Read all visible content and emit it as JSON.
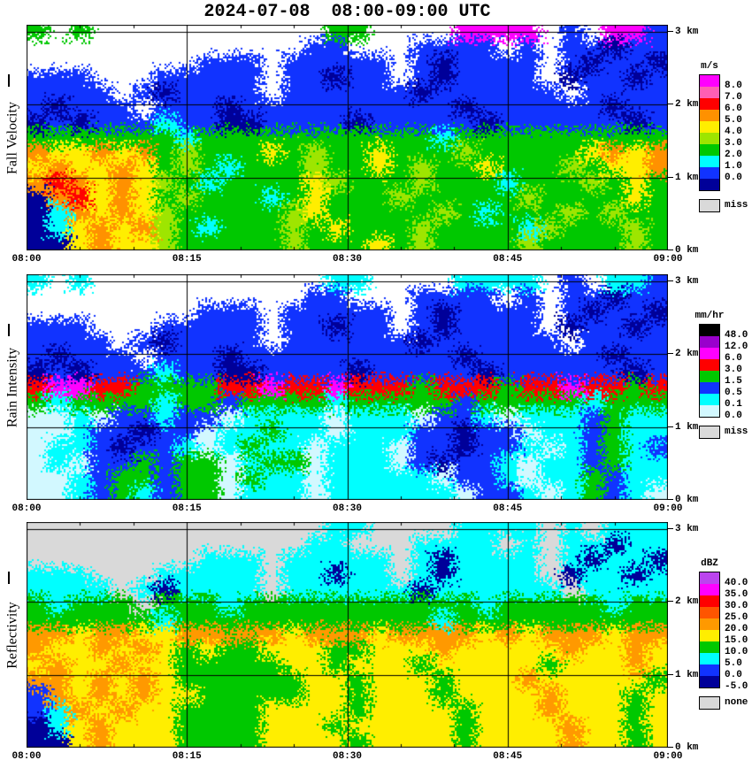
{
  "title": "2024-07-08  08:00-09:00 UTC",
  "chart_data": [
    {
      "type": "heatmap",
      "name": "fall-velocity",
      "ylabel": "Fall Velocity",
      "unit": "m/s",
      "time_start_utc": "08:00",
      "time_end_utc": "09:00",
      "x_tick_labels": [
        "08:00",
        "08:15",
        "08:30",
        "08:45",
        "09:00"
      ],
      "x_tick_minutes": [
        0,
        15,
        30,
        45,
        60
      ],
      "x_gridline_minutes": [
        15,
        30,
        45
      ],
      "height_km_range": [
        0,
        3.1
      ],
      "y_gridlines_km": [
        3,
        2,
        1
      ],
      "y_tick_km": [
        3,
        2,
        1,
        0
      ],
      "y_tick_labels": [
        "3 km",
        "2 km",
        "1 km",
        "0 km"
      ],
      "legend": {
        "title": "m/s",
        "entries": [
          {
            "color": "#ff00ff",
            "label": "8.0"
          },
          {
            "color": "#ff5fb4",
            "label": "7.0"
          },
          {
            "color": "#ff0000",
            "label": "6.0"
          },
          {
            "color": "#ff9100",
            "label": "5.0"
          },
          {
            "color": "#ffee00",
            "label": "4.0"
          },
          {
            "color": "#9ee500",
            "label": "3.0"
          },
          {
            "color": "#00c800",
            "label": "2.0"
          },
          {
            "color": "#00ffff",
            "label": "1.0"
          },
          {
            "color": "#1133ff",
            "label": "0.0"
          },
          {
            "color": "#000099",
            "label": ""
          }
        ],
        "miss": {
          "color": "#d9d9d9",
          "label": "miss"
        }
      },
      "palette": {
        ".": "#ffffff",
        "m": "#ff00ff",
        "p": "#ff5fb4",
        "r": "#ff0000",
        "o": "#ff9100",
        "y": "#ffee00",
        "h": "#9ee500",
        "g": "#00c800",
        "c": "#00ffff",
        "b": "#1133ff",
        "d": "#000099",
        "x": "#d9d9d9"
      },
      "grid_cols_minutes_each": 2,
      "grid_rows_km_each": 0.207,
      "grid_rows_top_to_bottom": [
        "g.g...........gg....mmmm.b.mmb",
        ".............bb...bbbb.b.bbdbb",
        "........bbb.bbbbb.bdbbbb.bdbbd",
        "bbb...bbbbb.bbdbb.bdbbbb.dbbdb",
        "bbbb.bdbbbb.bbbbbbdbbbbbb.bbbb",
        "bdbbb.bbbdbbbbbbbbbbdbbbbbbdbb",
        "dbdbbbcbbddbbbbdbbbbbdbbbbbbdb",
        "gggggggcgggggggggggcgggggggggg",
        "oyyoyoghgggyghggyggghgggggyoyo",
        "yoyyoyghgcggghggyghggyggghgyyo",
        "oroyoyhgcggggyhggghgggcggghgyg",
        "doryoyghgggcgyggghggggghggggyg",
        "dcoyoyhggggghyggggghgcggghghgg",
        "dcyoyohgcggghgyggghggggchggghg",
        "ddyoyyhggggghgggyghgggghgggghg"
      ]
    },
    {
      "type": "heatmap",
      "name": "rain-intensity",
      "ylabel": "Rain Intensity",
      "unit": "mm/hr",
      "time_start_utc": "08:00",
      "time_end_utc": "09:00",
      "x_tick_labels": [
        "08:00",
        "08:15",
        "08:30",
        "08:45",
        "09:00"
      ],
      "x_tick_minutes": [
        0,
        15,
        30,
        45,
        60
      ],
      "x_gridline_minutes": [
        15,
        30,
        45
      ],
      "height_km_range": [
        0,
        3.1
      ],
      "y_gridlines_km": [
        3,
        2,
        1
      ],
      "y_tick_km": [
        3,
        2,
        1,
        0
      ],
      "y_tick_labels": [
        "3 km",
        "2 km",
        "1 km",
        "0 km"
      ],
      "legend": {
        "title": "mm/hr",
        "entries": [
          {
            "color": "#000000",
            "label": "48.0"
          },
          {
            "color": "#9900cc",
            "label": "12.0"
          },
          {
            "color": "#ff00ff",
            "label": "6.0"
          },
          {
            "color": "#ff0000",
            "label": "3.0"
          },
          {
            "color": "#00c800",
            "label": "1.5"
          },
          {
            "color": "#1133ff",
            "label": "0.5"
          },
          {
            "color": "#00ffff",
            "label": "0.1"
          },
          {
            "color": "#d2f8ff",
            "label": "0.0"
          }
        ],
        "miss": {
          "color": "#d9d9d9",
          "label": "miss"
        }
      },
      "palette": {
        ".": "#ffffff",
        "k": "#000000",
        "u": "#9900cc",
        "m": "#ff00ff",
        "r": "#ff0000",
        "g": "#00c800",
        "b": "#1133ff",
        "c": "#00ffff",
        "l": "#d2f8ff",
        "d": "#000099",
        "x": "#d9d9d9"
      },
      "grid_cols_minutes_each": 2,
      "grid_rows_km_each": 0.207,
      "grid_rows_top_to_bottom": [
        "c.c...........cc....cccc.b.ccb",
        ".............bb...bbbb.b.bbdbb",
        "........bbb.bbbbb.bdbbbb.bdbbd",
        "bbb...bbbbb.bbdbb.bdbbbb.dbbdb",
        "bbbb.bdbbbb.bbbbbbdbbbbbb.bbbb",
        "bdbbb.bbbdbbbbbbbbbbdbbbbbbdbb",
        "dbdbbbcbbddbbbbdbbbbbdbbbbbbdb",
        "rmmrrggggrrmrrmrrrgrrrgrrmrrgr",
        "gcggggcggbggggcgggggbgggggcggg",
        "llclbbcbblcccclccclbbclcccbgcc",
        "llcbbdbblccgcclcccbbdbblccbgcc",
        "lccbdbbclcgcclccclbbdbbclcbgcb",
        "lclbbgbgglcgglccclbdbbclccbgcc",
        "llcbggbgglgcclccccclbbclccgbcc",
        "llcbgcbgglccclcccccclbbclcgbcl"
      ]
    },
    {
      "type": "heatmap",
      "name": "reflectivity",
      "ylabel": "Reflectivity",
      "unit": "dBZ",
      "time_start_utc": "08:00",
      "time_end_utc": "09:00",
      "x_tick_labels": [
        "08:00",
        "08:15",
        "08:30",
        "08:45",
        "09:00"
      ],
      "x_tick_minutes": [
        0,
        15,
        30,
        45,
        60
      ],
      "x_gridline_minutes": [
        15,
        30,
        45
      ],
      "height_km_range": [
        0,
        3.1
      ],
      "y_gridlines_km": [
        3,
        2,
        1
      ],
      "y_tick_km": [
        3,
        2,
        1,
        0
      ],
      "y_tick_labels": [
        "3 km",
        "2 km",
        "1 km",
        "0 km"
      ],
      "legend": {
        "title": "dBZ",
        "entries": [
          {
            "color": "#bb44ee",
            "label": "40.0"
          },
          {
            "color": "#ff00ff",
            "label": "35.0"
          },
          {
            "color": "#ff0000",
            "label": "30.0"
          },
          {
            "color": "#ff5500",
            "label": "25.0"
          },
          {
            "color": "#ff9900",
            "label": "20.0"
          },
          {
            "color": "#ffee00",
            "label": "15.0"
          },
          {
            "color": "#00c800",
            "label": "10.0"
          },
          {
            "color": "#00ffff",
            "label": "5.0"
          },
          {
            "color": "#1133ff",
            "label": "0.0"
          },
          {
            "color": "#000099",
            "label": "-5.0"
          }
        ],
        "miss": {
          "color": "#d9d9d9",
          "label": "none"
        }
      },
      "palette": {
        ".": "#d9d9d9",
        "P": "#bb44ee",
        "m": "#ff00ff",
        "r": "#ff0000",
        "q": "#ff5500",
        "o": "#ff9900",
        "y": "#ffee00",
        "g": "#00c800",
        "c": "#00ffff",
        "b": "#1133ff",
        "d": "#000099"
      },
      "grid_cols_minutes_each": 2,
      "grid_rows_km_each": 0.207,
      "grid_rows_top_to_bottom": [
        "..............cc....cccc.c.ccc",
        ".............cc...cccc.c.ccdcc",
        "........ccc.ccccc.cdcccc.cdccd",
        "ccc...ccccc.ccdcc.cdcccc.dccdc",
        "cccc.cdcccc.ccccccdcccccc.cccc",
        "gcggg.gggcgggggggggggcgggggcgg",
        "ggggggcggggggggggggcgggggggggg",
        "ooyooyyoooooyoooyooooyoyoooyoo",
        "oyyoyoygyggyyyggyyyoyyyyyoyyoy",
        "yoyyoyygggggyygyyygyyyyygyyyoy",
        "ooyoyoyggggggyygyyygyyyoyyyyyg",
        "boyoyoyygggggyygyyygyyyyoyyygy",
        "bcoyoyyggggyyyygyyyygyyyoyyygy",
        "dcyoyyyggggyyygyyyyygyyyyoyygy",
        "ddyoyyyggggyyyygyyyygyyyyoyygy"
      ]
    }
  ]
}
